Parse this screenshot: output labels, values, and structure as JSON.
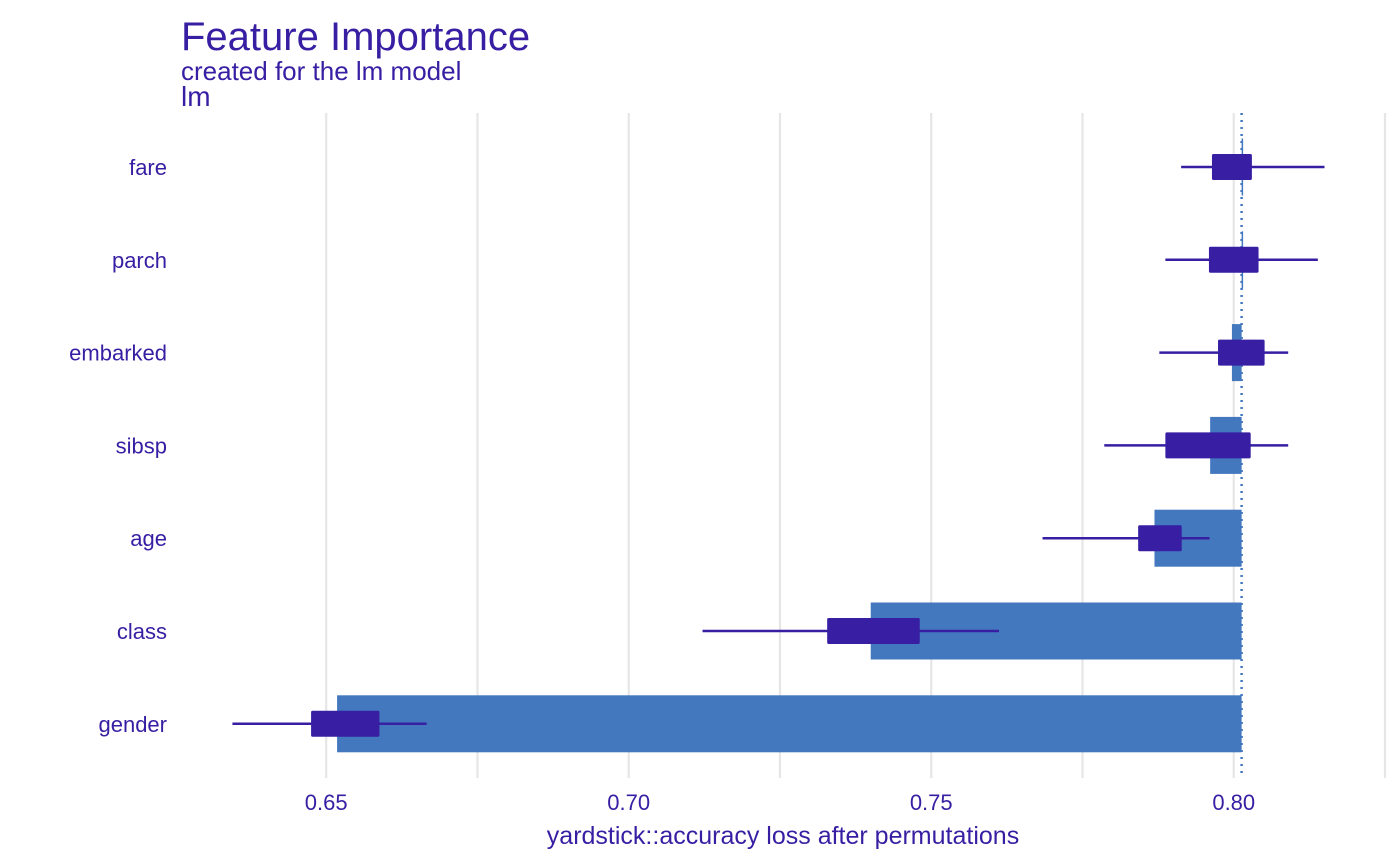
{
  "title": "Feature Importance",
  "subtitle": "created for the lm model",
  "facet_label": "lm",
  "colors": {
    "text": "#371ea3",
    "bar": "#4378bf",
    "box": "#371ea3",
    "whisker": "#371ea3",
    "baseline": "#4378bf",
    "grid": "#e6e6e6"
  },
  "chart_data": {
    "type": "bar",
    "orientation": "horizontal",
    "xlabel": "yardstick::accuracy loss after permutations",
    "ylabel": "",
    "xlim": [
      0.626,
      0.825
    ],
    "xticks": [
      0.65,
      0.7,
      0.75,
      0.8
    ],
    "xtick_labels": [
      "0.65",
      "0.70",
      "0.75",
      "0.80"
    ],
    "grid": true,
    "baseline": 0.8013,
    "categories": [
      "fare",
      "parch",
      "embarked",
      "sibsp",
      "age",
      "class",
      "gender"
    ],
    "bars": [
      0.8013,
      0.8013,
      0.7997,
      0.7961,
      0.7869,
      0.74,
      0.6518
    ],
    "boxes": [
      {
        "q1": 0.7964,
        "q3": 0.803
      },
      {
        "q1": 0.7959,
        "q3": 0.8041
      },
      {
        "q1": 0.7974,
        "q3": 0.8051
      },
      {
        "q1": 0.7887,
        "q3": 0.8028
      },
      {
        "q1": 0.7842,
        "q3": 0.7914
      },
      {
        "q1": 0.7328,
        "q3": 0.7481
      },
      {
        "q1": 0.6475,
        "q3": 0.6588
      }
    ],
    "whiskers": [
      {
        "min": 0.7913,
        "max": 0.815
      },
      {
        "min": 0.7887,
        "max": 0.8139
      },
      {
        "min": 0.7877,
        "max": 0.809
      },
      {
        "min": 0.7786,
        "max": 0.809
      },
      {
        "min": 0.7684,
        "max": 0.796
      },
      {
        "min": 0.7122,
        "max": 0.7612
      },
      {
        "min": 0.6345,
        "max": 0.6666
      }
    ]
  }
}
